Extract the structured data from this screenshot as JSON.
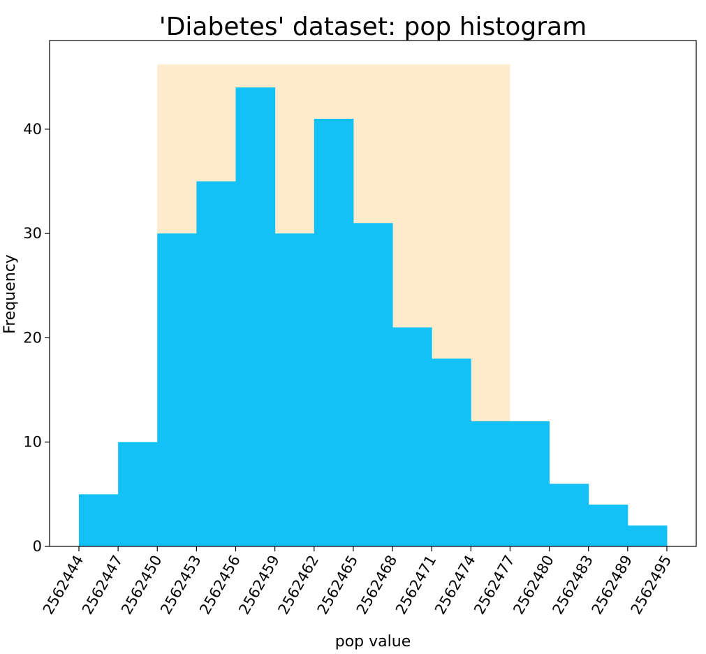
{
  "chart_data": {
    "type": "bar",
    "title": "'Diabetes' dataset: pop histogram",
    "xlabel": "pop value",
    "ylabel": "Frequency",
    "ylim": [
      0,
      48.5
    ],
    "yticks": [
      0,
      10,
      20,
      30,
      40
    ],
    "bin_edges": [
      "2562444",
      "2562447",
      "2562450",
      "2562453",
      "2562456",
      "2562459",
      "2562462",
      "2562465",
      "2562468",
      "2562471",
      "2562474",
      "2562477",
      "2562480",
      "2562483",
      "2562489",
      "2562495"
    ],
    "values": [
      5,
      10,
      30,
      35,
      44,
      30,
      41,
      31,
      21,
      18,
      12,
      12,
      6,
      4,
      2
    ],
    "highlight": {
      "from": "2562450",
      "to": "2562477",
      "height": 46.2,
      "color": "#fdebcc"
    },
    "bar_color": "#13c1f6",
    "grid": false,
    "legend": "none"
  }
}
